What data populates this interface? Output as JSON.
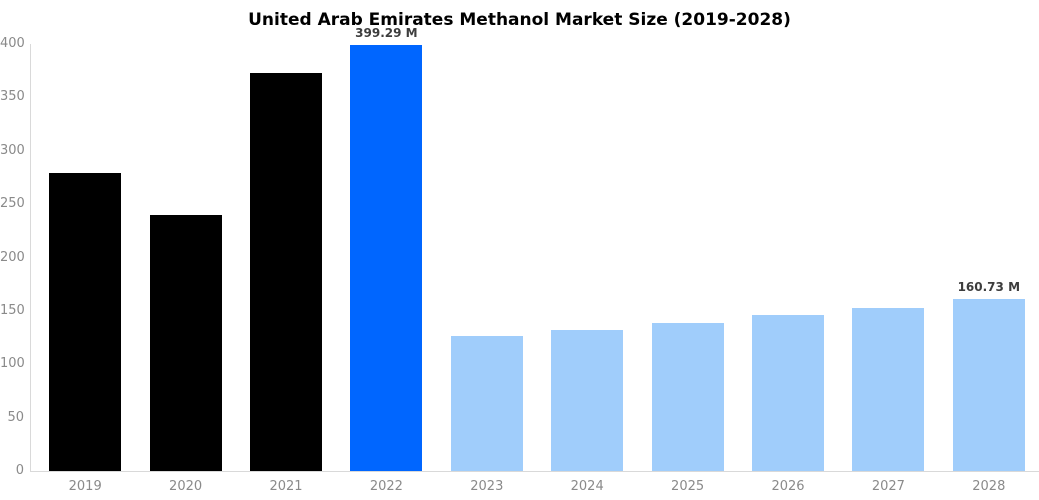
{
  "chart_data": {
    "type": "bar",
    "title": "United Arab Emirates Methanol Market Size (2019-2028)",
    "categories": [
      "2019",
      "2020",
      "2021",
      "2022",
      "2023",
      "2024",
      "2025",
      "2026",
      "2027",
      "2028"
    ],
    "values": [
      279.3,
      239.7,
      372.4,
      399.29,
      126.2,
      132.5,
      139.0,
      145.9,
      153.1,
      160.73
    ],
    "bar_colors": [
      "#000000",
      "#000000",
      "#000000",
      "#0066ff",
      "#a0cdfb",
      "#a0cdfb",
      "#a0cdfb",
      "#a0cdfb",
      "#a0cdfb",
      "#a0cdfb"
    ],
    "value_labels": [
      {
        "index": 3,
        "text": "399.29 M"
      },
      {
        "index": 9,
        "text": "160.73 M"
      }
    ],
    "xlabel": "",
    "ylabel": "",
    "ylim": [
      0,
      400
    ],
    "yticks": [
      0,
      50,
      100,
      150,
      200,
      250,
      300,
      350,
      400
    ],
    "grid": false,
    "legend": false,
    "colors": {
      "historical_bar": "#000000",
      "highlight_bar": "#0066ff",
      "forecast_bar": "#a0cdfb",
      "axis_line": "#d9d9d9",
      "tick_label": "#8a8a8a",
      "value_label": "#3d3d3d",
      "title": "#000000",
      "background": "#ffffff"
    }
  }
}
